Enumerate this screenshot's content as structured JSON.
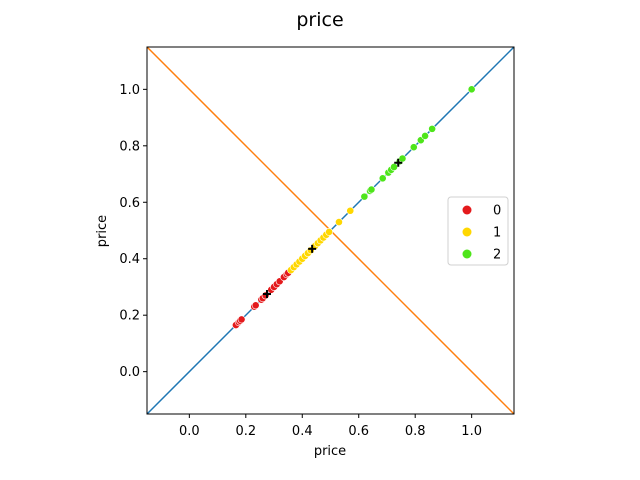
{
  "chart_data": {
    "type": "scatter",
    "title": "price",
    "xlabel": "price",
    "ylabel": "price",
    "xlim": [
      -0.15,
      1.15
    ],
    "ylim": [
      -0.15,
      1.15
    ],
    "x_ticks": [
      0.0,
      0.2,
      0.4,
      0.6,
      0.8,
      1.0
    ],
    "x_tick_labels": [
      "0.0",
      "0.2",
      "0.4",
      "0.6",
      "0.8",
      "1.0"
    ],
    "y_ticks": [
      0.0,
      0.2,
      0.4,
      0.6,
      0.8,
      1.0
    ],
    "y_tick_labels": [
      "0.0",
      "0.2",
      "0.4",
      "0.6",
      "0.8",
      "1.0"
    ],
    "grid": false,
    "legend_position": "right",
    "reference_lines": [
      {
        "from": [
          -0.15,
          -0.15
        ],
        "to": [
          1.15,
          1.15
        ],
        "color": "#1f77b4"
      },
      {
        "from": [
          -0.15,
          1.15
        ],
        "to": [
          1.15,
          -0.15
        ],
        "color": "#ff7f0e"
      }
    ],
    "series": [
      {
        "name": "0",
        "color": "#e41a1c",
        "points": [
          [
            0.165,
            0.165
          ],
          [
            0.175,
            0.175
          ],
          [
            0.18,
            0.18
          ],
          [
            0.185,
            0.185
          ],
          [
            0.23,
            0.23
          ],
          [
            0.235,
            0.235
          ],
          [
            0.255,
            0.255
          ],
          [
            0.26,
            0.26
          ],
          [
            0.27,
            0.27
          ],
          [
            0.29,
            0.29
          ],
          [
            0.3,
            0.3
          ],
          [
            0.31,
            0.31
          ],
          [
            0.32,
            0.32
          ],
          [
            0.335,
            0.335
          ],
          [
            0.345,
            0.345
          ],
          [
            0.35,
            0.35
          ]
        ]
      },
      {
        "name": "1",
        "color": "#ffd700",
        "points": [
          [
            0.36,
            0.36
          ],
          [
            0.37,
            0.37
          ],
          [
            0.38,
            0.38
          ],
          [
            0.39,
            0.39
          ],
          [
            0.4,
            0.4
          ],
          [
            0.41,
            0.41
          ],
          [
            0.42,
            0.42
          ],
          [
            0.43,
            0.43
          ],
          [
            0.445,
            0.445
          ],
          [
            0.455,
            0.455
          ],
          [
            0.465,
            0.465
          ],
          [
            0.475,
            0.475
          ],
          [
            0.485,
            0.485
          ],
          [
            0.495,
            0.495
          ],
          [
            0.53,
            0.53
          ],
          [
            0.57,
            0.57
          ]
        ]
      },
      {
        "name": "2",
        "color": "#4ee51a",
        "points": [
          [
            0.62,
            0.62
          ],
          [
            0.64,
            0.64
          ],
          [
            0.645,
            0.645
          ],
          [
            0.685,
            0.685
          ],
          [
            0.705,
            0.705
          ],
          [
            0.715,
            0.715
          ],
          [
            0.725,
            0.725
          ],
          [
            0.745,
            0.745
          ],
          [
            0.755,
            0.755
          ],
          [
            0.795,
            0.795
          ],
          [
            0.82,
            0.82
          ],
          [
            0.835,
            0.835
          ],
          [
            0.86,
            0.86
          ],
          [
            1.0,
            1.0
          ]
        ]
      }
    ],
    "centroids": [
      [
        0.275,
        0.275
      ],
      [
        0.435,
        0.435
      ],
      [
        0.74,
        0.74
      ]
    ],
    "centroid_color": "#000000"
  }
}
